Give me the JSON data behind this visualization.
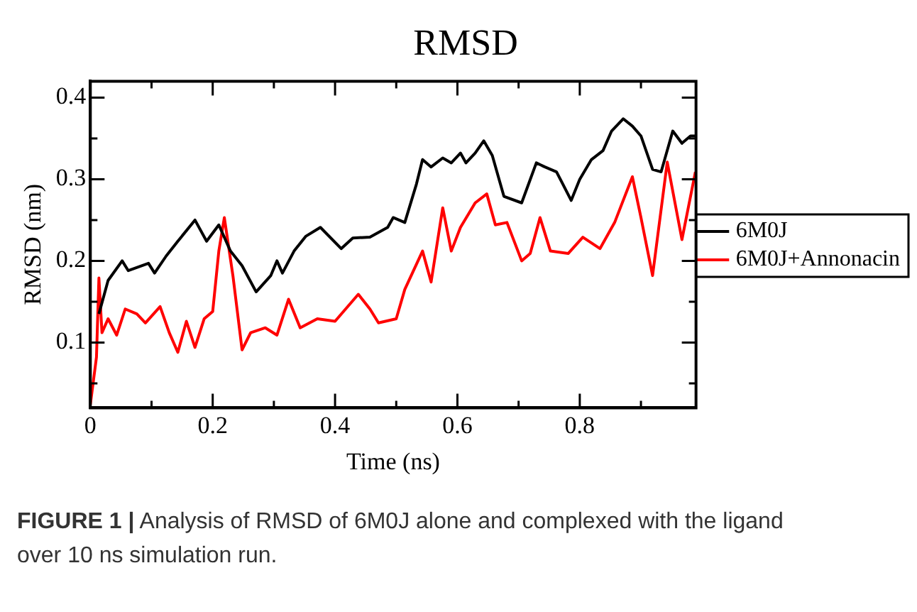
{
  "chart_data": {
    "type": "line",
    "title": "RMSD",
    "xlabel": "Time (ns)",
    "ylabel": "RMSD (nm)",
    "xlim": [
      0,
      0.99
    ],
    "ylim": [
      0.02,
      0.42
    ],
    "xticks": [
      0,
      {
        "value": 0.1,
        "label": null
      },
      0.2,
      {
        "value": 0.3,
        "label": null
      },
      0.4,
      {
        "value": 0.5,
        "label": null
      },
      0.6,
      {
        "value": 0.7,
        "label": null
      },
      0.8,
      {
        "value": 0.9,
        "label": null
      }
    ],
    "yticks": [
      {
        "value": 0.05,
        "label": null
      },
      0.1,
      {
        "value": 0.15,
        "label": null
      },
      0.2,
      {
        "value": 0.25,
        "label": null
      },
      0.3,
      {
        "value": 0.35,
        "label": null
      },
      0.4
    ],
    "grid": false,
    "legend": "right",
    "marker": "none",
    "line_style": "solid",
    "annotations": [
      "FIGURE 1 | Analysis of RMSD of 6M0J alone and complexed with the ligand over 10 ns simulation run."
    ],
    "series": [
      {
        "name": "6M0J",
        "color": "#000000",
        "x": [
          0.014,
          0.029,
          0.052,
          0.062,
          0.095,
          0.105,
          0.124,
          0.143,
          0.171,
          0.19,
          0.21,
          0.229,
          0.248,
          0.271,
          0.295,
          0.305,
          0.314,
          0.333,
          0.352,
          0.376,
          0.41,
          0.429,
          0.457,
          0.486,
          0.495,
          0.514,
          0.533,
          0.543,
          0.557,
          0.576,
          0.59,
          0.605,
          0.614,
          0.629,
          0.643,
          0.657,
          0.676,
          0.705,
          0.729,
          0.743,
          0.762,
          0.786,
          0.8,
          0.819,
          0.838,
          0.852,
          0.871,
          0.886,
          0.9,
          0.919,
          0.933,
          0.952,
          0.967,
          0.981,
          0.989
        ],
        "values": [
          0.135,
          0.176,
          0.2,
          0.188,
          0.197,
          0.185,
          0.206,
          0.224,
          0.25,
          0.224,
          0.244,
          0.212,
          0.194,
          0.162,
          0.182,
          0.2,
          0.185,
          0.212,
          0.23,
          0.241,
          0.215,
          0.228,
          0.229,
          0.241,
          0.253,
          0.247,
          0.294,
          0.324,
          0.315,
          0.326,
          0.32,
          0.332,
          0.32,
          0.332,
          0.347,
          0.329,
          0.279,
          0.271,
          0.32,
          0.315,
          0.309,
          0.274,
          0.3,
          0.324,
          0.335,
          0.359,
          0.374,
          0.365,
          0.353,
          0.312,
          0.309,
          0.359,
          0.344,
          0.353,
          0.353
        ]
      },
      {
        "name": "6M0J+Annonacin",
        "color": "#ff0000",
        "x": [
          0,
          0.01,
          0.014,
          0.019,
          0.029,
          0.043,
          0.057,
          0.076,
          0.09,
          0.114,
          0.129,
          0.143,
          0.157,
          0.171,
          0.186,
          0.2,
          0.21,
          0.219,
          0.233,
          0.248,
          0.262,
          0.286,
          0.305,
          0.324,
          0.343,
          0.371,
          0.4,
          0.438,
          0.457,
          0.471,
          0.5,
          0.514,
          0.543,
          0.557,
          0.576,
          0.59,
          0.605,
          0.629,
          0.648,
          0.662,
          0.681,
          0.705,
          0.719,
          0.735,
          0.752,
          0.781,
          0.805,
          0.833,
          0.857,
          0.886,
          0.9,
          0.919,
          0.943,
          0.967,
          0.989
        ],
        "values": [
          0.024,
          0.082,
          0.179,
          0.112,
          0.129,
          0.109,
          0.141,
          0.135,
          0.124,
          0.144,
          0.112,
          0.088,
          0.126,
          0.094,
          0.129,
          0.138,
          0.212,
          0.253,
          0.182,
          0.091,
          0.112,
          0.118,
          0.109,
          0.153,
          0.118,
          0.129,
          0.126,
          0.159,
          0.141,
          0.124,
          0.129,
          0.165,
          0.212,
          0.174,
          0.265,
          0.212,
          0.241,
          0.271,
          0.282,
          0.244,
          0.247,
          0.2,
          0.209,
          0.253,
          0.212,
          0.209,
          0.229,
          0.215,
          0.247,
          0.303,
          0.253,
          0.182,
          0.321,
          0.226,
          0.309
        ]
      }
    ]
  }
}
